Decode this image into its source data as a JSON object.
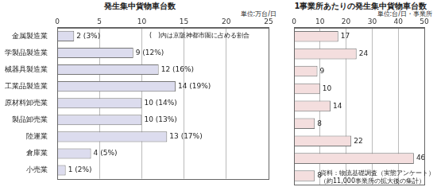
{
  "chart_data": [
    {
      "type": "bar",
      "orientation": "horizontal",
      "title": "発生集中貨物車台数",
      "unit_label": "単位:万台/日",
      "note": "(　)内は京阪神都市圏に占める割合",
      "categories": [
        "金属製造業",
        "学製品製造業",
        "械器具製造業",
        "工業品製造業",
        "原材料卸売業",
        "製品卸売業",
        "陸運業",
        "倉庫業",
        "小売業"
      ],
      "values": [
        2,
        9,
        12,
        14,
        10,
        10,
        13,
        4,
        1
      ],
      "value_labels": [
        "2 (3%)",
        "9 (12%)",
        "12 (16%)",
        "14 (19%)",
        "10 (14%)",
        "10 (13%)",
        "13 (17%)",
        "4 (5%)",
        "1 (2%)"
      ],
      "data_labels": true,
      "color": "#dcdcee",
      "xlim": [
        0,
        25
      ],
      "xticks": [
        0,
        5,
        10,
        15,
        20,
        25
      ],
      "grid": true
    },
    {
      "type": "bar",
      "orientation": "horizontal",
      "title": "1事業所あたりの発生集中貨物車台数",
      "unit_label": "単位:台/日・事業所",
      "source": [
        "資料：物流基礎調査（実態アンケート）",
        "（約11,000事業所の拡大後の集計）"
      ],
      "categories": [
        "金属製造業",
        "学製品製造業",
        "械器具製造業",
        "工業品製造業",
        "原材料卸売業",
        "製品卸売業",
        "陸運業",
        "倉庫業",
        "小売業"
      ],
      "values": [
        17,
        24,
        9,
        10,
        14,
        8,
        22,
        46,
        8
      ],
      "data_labels": true,
      "tick_labels": "x",
      "color": "#f4dede",
      "xlim": [
        0,
        50
      ],
      "xticks": [
        0,
        10,
        20,
        30,
        40,
        50
      ],
      "grid": true
    }
  ]
}
